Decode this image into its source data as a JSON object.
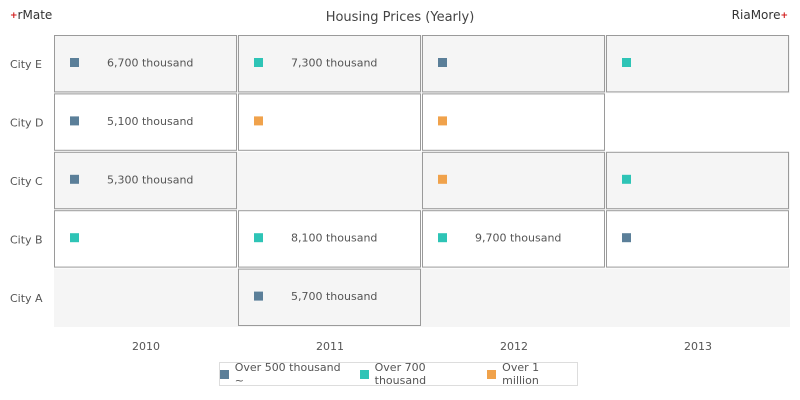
{
  "header": {
    "brand_left": "rMate",
    "brand_left_mark": "+",
    "brand_right": "RiaMore",
    "brand_right_mark": "+"
  },
  "chart_data": {
    "type": "heatmap",
    "title": "Housing Prices (Yearly)",
    "x_categories": [
      "2010",
      "2011",
      "2012",
      "2013"
    ],
    "y_categories": [
      "City A",
      "City B",
      "City C",
      "City D",
      "City E"
    ],
    "legend": [
      {
        "key": "over500k",
        "label": "Over 500 thousand ~",
        "color": "#5b7f99"
      },
      {
        "key": "over700k",
        "label": "Over 700 thousand",
        "color": "#2ec4b6"
      },
      {
        "key": "over1m",
        "label": "Over 1 million",
        "color": "#f0a24b"
      }
    ],
    "cells": [
      {
        "x": "2010",
        "y": "City E",
        "category": "over500k",
        "label": "6,700 thousand"
      },
      {
        "x": "2011",
        "y": "City E",
        "category": "over700k",
        "label": "7,300 thousand"
      },
      {
        "x": "2012",
        "y": "City E",
        "category": "over500k",
        "label": ""
      },
      {
        "x": "2013",
        "y": "City E",
        "category": "over700k",
        "label": ""
      },
      {
        "x": "2010",
        "y": "City D",
        "category": "over500k",
        "label": "5,100 thousand"
      },
      {
        "x": "2011",
        "y": "City D",
        "category": "over1m",
        "label": ""
      },
      {
        "x": "2012",
        "y": "City D",
        "category": "over1m",
        "label": ""
      },
      {
        "x": "2010",
        "y": "City C",
        "category": "over500k",
        "label": "5,300 thousand"
      },
      {
        "x": "2012",
        "y": "City C",
        "category": "over1m",
        "label": ""
      },
      {
        "x": "2013",
        "y": "City C",
        "category": "over700k",
        "label": ""
      },
      {
        "x": "2010",
        "y": "City B",
        "category": "over700k",
        "label": ""
      },
      {
        "x": "2011",
        "y": "City B",
        "category": "over700k",
        "label": "8,100 thousand"
      },
      {
        "x": "2012",
        "y": "City B",
        "category": "over700k",
        "label": "9,700 thousand"
      },
      {
        "x": "2013",
        "y": "City B",
        "category": "over500k",
        "label": ""
      },
      {
        "x": "2011",
        "y": "City A",
        "category": "over500k",
        "label": "5,700 thousand"
      }
    ]
  }
}
